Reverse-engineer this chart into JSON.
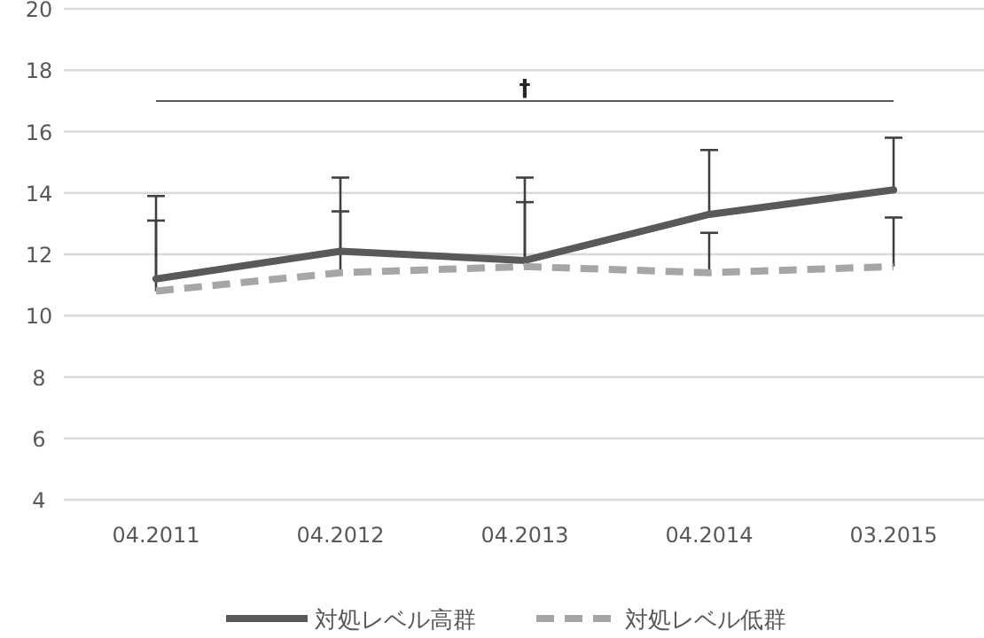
{
  "chart_data": {
    "type": "line",
    "categories": [
      "04.2011",
      "04.2012",
      "04.2013",
      "04.2014",
      "03.2015"
    ],
    "series": [
      {
        "name": "対処レベル高群",
        "color": "#595959",
        "line_style": "solid",
        "values": [
          11.2,
          12.1,
          11.8,
          13.3,
          14.1
        ],
        "errors": [
          [
            11.2,
            13.9
          ],
          [
            12.1,
            14.5
          ],
          [
            11.8,
            14.5
          ],
          [
            13.3,
            15.4
          ],
          [
            14.1,
            15.8
          ]
        ]
      },
      {
        "name": "対処レベル低群",
        "color": "#a6a6a6",
        "line_style": "dashed",
        "values": [
          10.8,
          11.4,
          11.6,
          11.4,
          11.6
        ],
        "errors": [
          [
            10.8,
            13.1
          ],
          [
            11.4,
            13.4
          ],
          [
            11.6,
            13.7
          ],
          [
            11.4,
            12.7
          ],
          [
            11.6,
            13.2
          ]
        ]
      }
    ],
    "ylim": [
      4,
      20
    ],
    "yticks": [
      4,
      6,
      8,
      10,
      12,
      14,
      16,
      18,
      20
    ],
    "grid": "y",
    "legend": "bottom",
    "ref_lines": [
      {
        "axis": "y",
        "value": 17,
        "label": "†",
        "color": "#595959"
      }
    ]
  }
}
